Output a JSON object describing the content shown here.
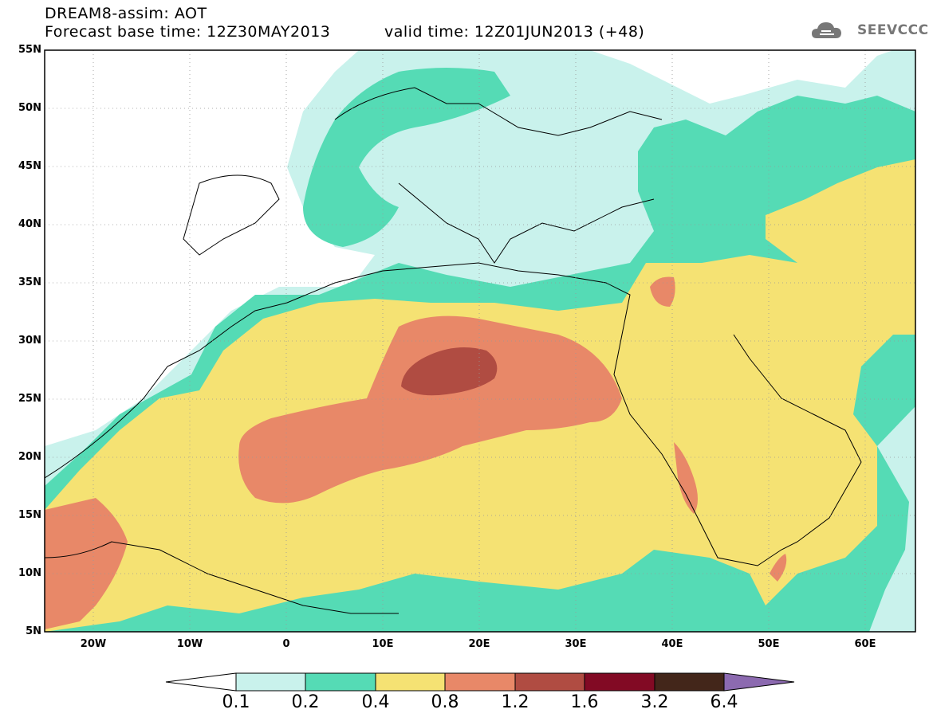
{
  "header": {
    "title_line1": "DREAM8-assim: AOT",
    "base_time": "Forecast base time: 12Z30MAY2013",
    "valid_time": "valid time: 12Z01JUN2013 (+48)",
    "logo_text": "SEEVCCC"
  },
  "axes": {
    "lat_labels": [
      "55N",
      "50N",
      "45N",
      "40N",
      "35N",
      "30N",
      "25N",
      "20N",
      "15N",
      "10N",
      "5N"
    ],
    "lon_labels": [
      "20W",
      "10W",
      "0",
      "10E",
      "20E",
      "30E",
      "40E",
      "50E",
      "60E"
    ],
    "lat_range": [
      5,
      55
    ],
    "lon_range": [
      -25,
      65
    ]
  },
  "legend": {
    "levels": [
      "0.1",
      "0.2",
      "0.4",
      "0.8",
      "1.2",
      "1.6",
      "3.2",
      "6.4"
    ],
    "colors": [
      "#ffffff",
      "#c9f2ec",
      "#55dbb5",
      "#f5e273",
      "#e88868",
      "#b04c42",
      "#820a24",
      "#43261a",
      "#8c6ab0"
    ]
  }
}
